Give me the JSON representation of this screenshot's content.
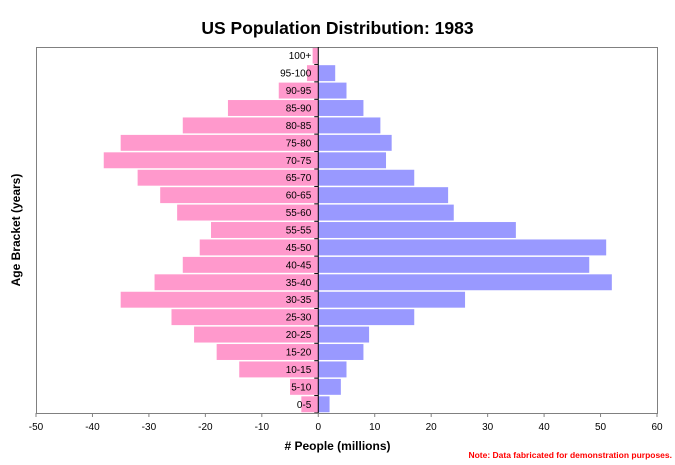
{
  "chart_data": {
    "type": "bar",
    "orientation": "horizontal",
    "title": "US Population Distribution: 1983",
    "xlabel": "# People (millions)",
    "ylabel": "Age Bracket (years)",
    "xlim": [
      -50,
      60
    ],
    "xticks": [
      -50,
      -40,
      -30,
      -20,
      -10,
      0,
      10,
      20,
      30,
      40,
      50,
      60
    ],
    "grid": false,
    "legend": "none",
    "categories": [
      "0-5",
      "5-10",
      "10-15",
      "15-20",
      "20-25",
      "25-30",
      "30-35",
      "35-40",
      "40-45",
      "45-50",
      "55-55",
      "55-60",
      "60-65",
      "65-70",
      "70-75",
      "75-80",
      "80-85",
      "85-90",
      "90-95",
      "95-100",
      "100+"
    ],
    "series": [
      {
        "name": "left",
        "color": "#ff99cc",
        "values": [
          -3,
          -5,
          -14,
          -18,
          -22,
          -26,
          -35,
          -29,
          -24,
          -21,
          -19,
          -25,
          -28,
          -32,
          -38,
          -35,
          -24,
          -16,
          -7,
          -2,
          -1
        ]
      },
      {
        "name": "right",
        "color": "#9999ff",
        "values": [
          2,
          4,
          5,
          8,
          9,
          17,
          26,
          52,
          48,
          51,
          35,
          24,
          23,
          17,
          12,
          13,
          11,
          8,
          5,
          3,
          0
        ]
      }
    ],
    "annotation": "Note: Data fabricated for demonstration purposes."
  }
}
